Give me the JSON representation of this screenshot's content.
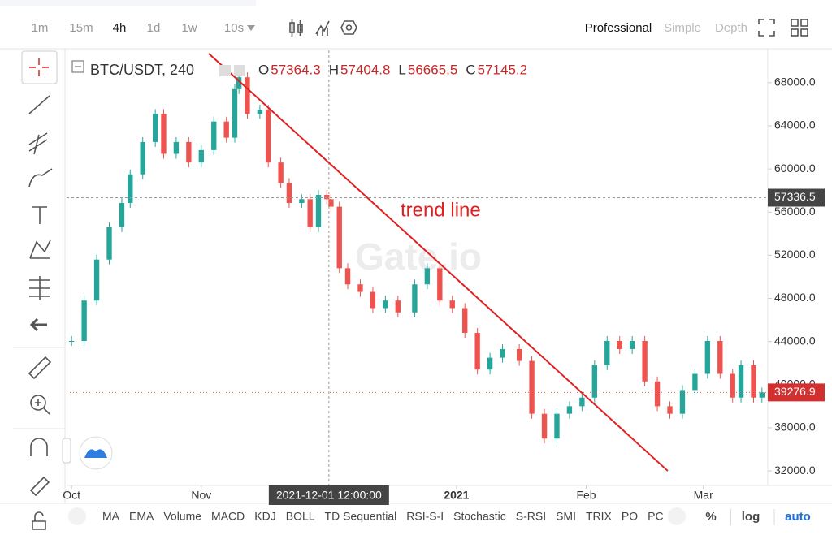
{
  "toolbar": {
    "intervals": [
      "1m",
      "15m",
      "4h",
      "1d",
      "1w",
      "10s"
    ],
    "active_interval": "4h",
    "views": [
      "Professional",
      "Simple",
      "Depth"
    ],
    "active_view": "Professional"
  },
  "watermark": "Gate.io",
  "chart_data": {
    "type": "candlestick",
    "title": "BTC/USDT, 240",
    "ohlc": [
      {
        "label": "O",
        "value": "57364.3"
      },
      {
        "label": "H",
        "value": "57404.8"
      },
      {
        "label": "L",
        "value": "56665.5"
      },
      {
        "label": "C",
        "value": "57145.2"
      }
    ],
    "x": [
      0,
      3,
      6,
      9,
      12,
      14,
      17,
      20,
      22,
      25,
      28,
      31,
      34,
      37,
      39,
      40,
      42,
      45,
      47,
      50,
      52,
      55,
      57,
      59,
      61,
      62,
      64,
      66,
      69,
      72,
      75,
      78,
      82,
      85,
      88,
      91,
      94,
      97,
      100,
      103,
      107,
      110,
      113,
      116,
      119,
      122,
      125,
      128,
      131,
      134,
      137,
      140,
      143,
      146,
      149,
      152,
      155,
      158,
      160,
      163,
      165
    ],
    "values": [
      44050,
      47800,
      51600,
      54600,
      56850,
      59500,
      62500,
      65100,
      61400,
      62500,
      60600,
      61750,
      64400,
      62900,
      67400,
      68500,
      65100,
      65500,
      60600,
      58700,
      56850,
      57200,
      54600,
      57600,
      57200,
      56500,
      50800,
      49300,
      48600,
      47100,
      47800,
      46700,
      49300,
      50800,
      47800,
      47100,
      44800,
      41400,
      42500,
      43300,
      42200,
      37300,
      35000,
      37300,
      38000,
      38800,
      41800,
      44050,
      43300,
      44050,
      40300,
      38000,
      37300,
      39500,
      41000,
      44050,
      41000,
      38800,
      41800,
      38800,
      39276.9
    ],
    "up_color": "#26a69a",
    "down_color": "#ef5350",
    "xlim": [
      -1.2,
      166.4
    ],
    "xticks": [
      {
        "value": 0,
        "label": "Oct"
      },
      {
        "value": 31,
        "label": "Nov"
      },
      {
        "value": 92,
        "label": "2021"
      },
      {
        "value": 123,
        "label": "Feb"
      },
      {
        "value": 151,
        "label": "Mar"
      }
    ],
    "ylim": [
      30650,
      71000
    ],
    "yticks": [
      {
        "value": 32000,
        "label": "32000.0"
      },
      {
        "value": 36000,
        "label": "36000.0"
      },
      {
        "value": 40000,
        "label": "40000.0"
      },
      {
        "value": 44000,
        "label": "44000.0"
      },
      {
        "value": 48000,
        "label": "48000.0"
      },
      {
        "value": 52000,
        "label": "52000.0"
      },
      {
        "value": 56000,
        "label": "56000.0"
      },
      {
        "value": 60000,
        "label": "60000.0"
      },
      {
        "value": 64000,
        "label": "64000.0"
      },
      {
        "value": 68000,
        "label": "68000.0"
      }
    ],
    "crosshair": {
      "x": 61.5,
      "x_label": "2021-12-01 12:00:00",
      "y": 57336.5
    },
    "last_price": 39276.9,
    "trend_line": {
      "label": "trend line",
      "x": [
        32.8,
        142.5
      ],
      "y": [
        70700,
        32000
      ],
      "color": "#e02020"
    }
  },
  "indicators": [
    "MA",
    "EMA",
    "Volume",
    "MACD",
    "KDJ",
    "BOLL",
    "TD Sequential",
    "RSI-S-I",
    "Stochastic",
    "S-RSI",
    "SMI",
    "TRIX",
    "PO",
    "PC"
  ],
  "scale_options": [
    "%",
    "log",
    "auto"
  ],
  "active_scale": "auto"
}
